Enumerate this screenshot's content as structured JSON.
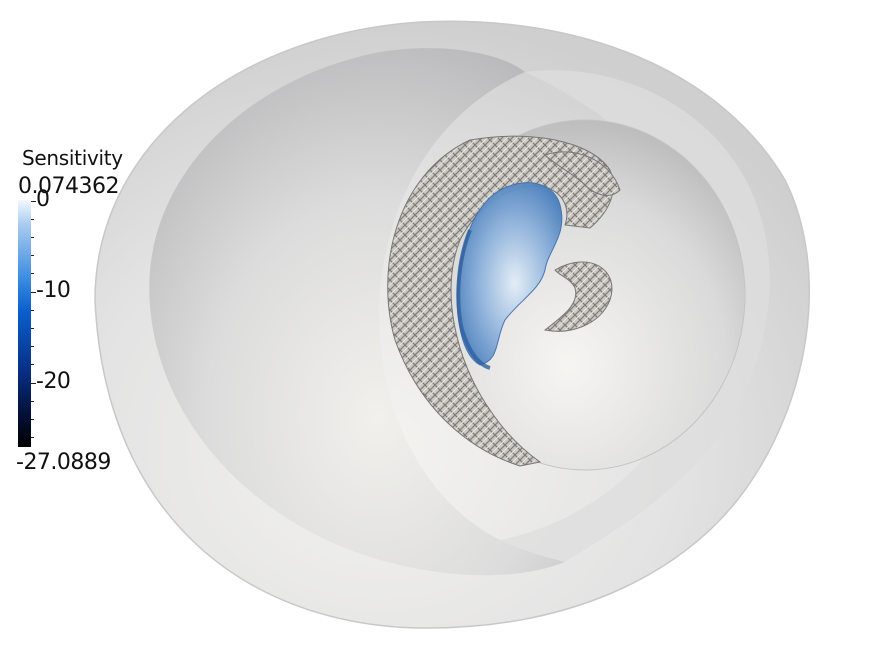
{
  "legend": {
    "title": "Sensitivity",
    "max_label": "0.074362",
    "min_label": "-27.0889",
    "range": [
      -27.0889,
      0.074362
    ],
    "tick_labels": [
      "0",
      "-10",
      "-20"
    ],
    "tick_values": [
      0,
      -10,
      -20
    ],
    "colormap": [
      "#f2f8ff",
      "#3b8be0",
      "#08318a",
      "#000000"
    ]
  },
  "scene": {
    "outer_shell_color": "#e6e6e6",
    "mesh_surface_color": "#c9c6c0",
    "sensitivity_region_color": "#7aa3d0"
  }
}
